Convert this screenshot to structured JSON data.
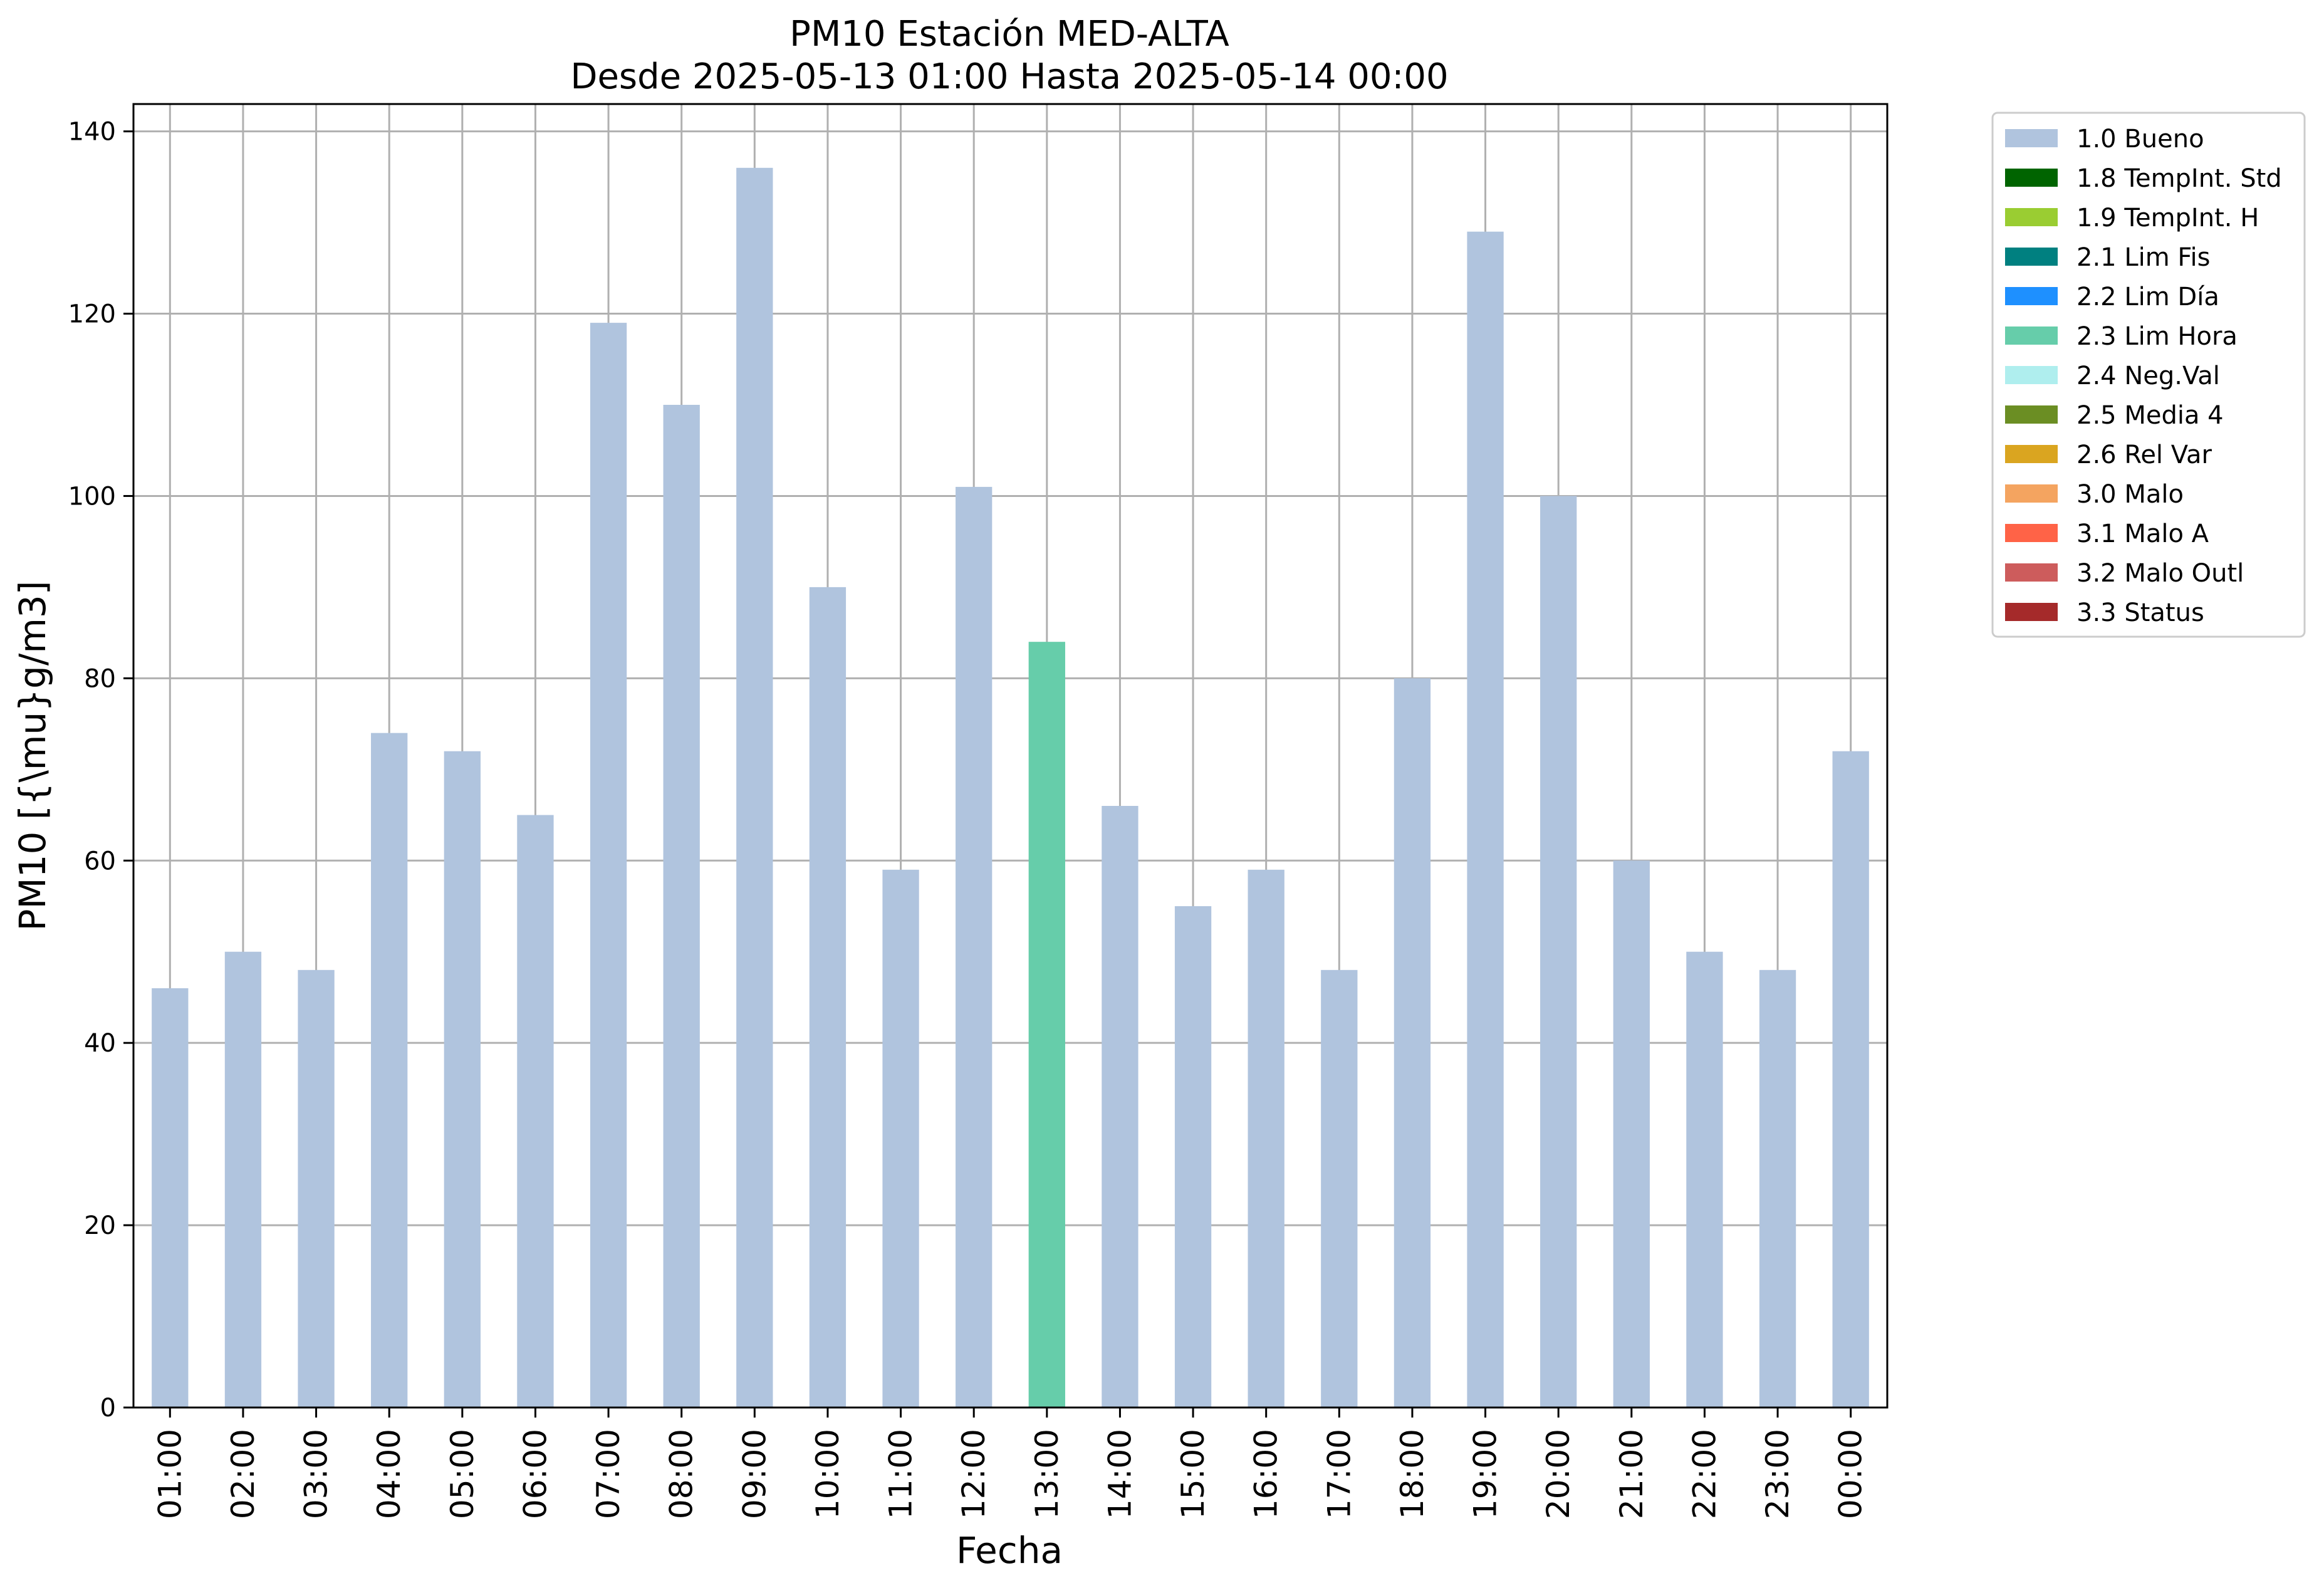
{
  "chart_data": {
    "type": "bar",
    "title": "PM10 Estación MED-ALTA",
    "subtitle": "Desde 2025-05-13 01:00 Hasta 2025-05-14 00:00",
    "xlabel": "Fecha",
    "ylabel": "PM10 [{\\mu}g/m3]",
    "ylim": [
      0,
      143
    ],
    "yticks": [
      "0",
      "20",
      "40",
      "60",
      "80",
      "100",
      "120",
      "140"
    ],
    "grid": true,
    "legend_position": "outside-top-right",
    "categories": [
      "01:00",
      "02:00",
      "03:00",
      "04:00",
      "05:00",
      "06:00",
      "07:00",
      "08:00",
      "09:00",
      "10:00",
      "11:00",
      "12:00",
      "13:00",
      "14:00",
      "15:00",
      "16:00",
      "17:00",
      "18:00",
      "19:00",
      "20:00",
      "21:00",
      "22:00",
      "23:00",
      "00:00"
    ],
    "values": [
      46,
      50,
      48,
      74,
      72,
      65,
      119,
      110,
      136,
      90,
      59,
      101,
      84,
      66,
      55,
      59,
      48,
      80,
      129,
      100,
      60,
      50,
      48,
      72
    ],
    "flags": [
      "1.0 Bueno",
      "1.0 Bueno",
      "1.0 Bueno",
      "1.0 Bueno",
      "1.0 Bueno",
      "1.0 Bueno",
      "1.0 Bueno",
      "1.0 Bueno",
      "1.0 Bueno",
      "1.0 Bueno",
      "1.0 Bueno",
      "1.0 Bueno",
      "2.3 Lim Hora",
      "1.0 Bueno",
      "1.0 Bueno",
      "1.0 Bueno",
      "1.0 Bueno",
      "1.0 Bueno",
      "1.0 Bueno",
      "1.0 Bueno",
      "1.0 Bueno",
      "1.0 Bueno",
      "1.0 Bueno",
      "1.0 Bueno"
    ],
    "legend": [
      {
        "label": "1.0 Bueno",
        "color": "#b0c4de"
      },
      {
        "label": "1.8 TempInt. Std",
        "color": "#006400"
      },
      {
        "label": "1.9 TempInt. H",
        "color": "#9acd32"
      },
      {
        "label": "2.1 Lim Fis",
        "color": "#008080"
      },
      {
        "label": "2.2 Lim Día",
        "color": "#1e90ff"
      },
      {
        "label": "2.3 Lim Hora",
        "color": "#66cdaa"
      },
      {
        "label": "2.4 Neg.Val",
        "color": "#afeeee"
      },
      {
        "label": "2.5 Media 4",
        "color": "#6b8e23"
      },
      {
        "label": "2.6 Rel Var",
        "color": "#daa520"
      },
      {
        "label": "3.0 Malo",
        "color": "#f4a460"
      },
      {
        "label": "3.1 Malo A",
        "color": "#ff6347"
      },
      {
        "label": "3.2 Malo Outl",
        "color": "#cd5c5c"
      },
      {
        "label": "3.3 Status",
        "color": "#a52a2a"
      }
    ]
  }
}
